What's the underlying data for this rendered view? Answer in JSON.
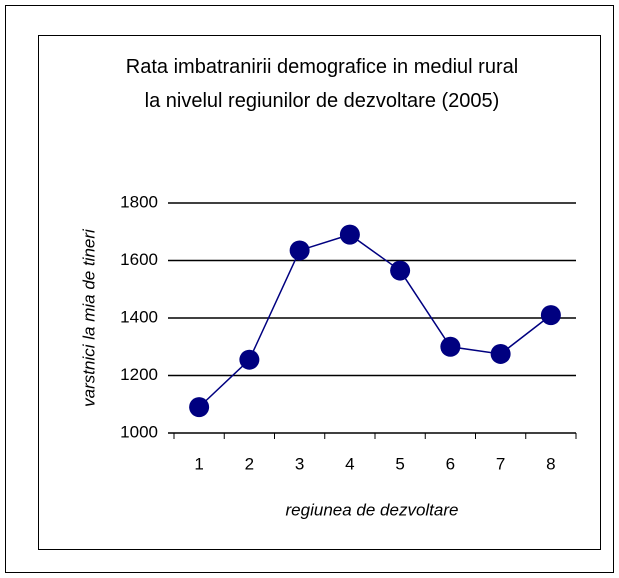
{
  "chart_data": {
    "type": "line",
    "title": "Rata imbatranirii demografice in mediul rural la nivelul regiunilor de dezvoltare (2005)",
    "x_label": "regiunea de dezvoltare",
    "y_label": "varstnici la mia de tineri",
    "categories": [
      "1",
      "2",
      "3",
      "4",
      "5",
      "6",
      "7",
      "8"
    ],
    "series": [
      {
        "color": "#000080",
        "values": [
          1090,
          1255,
          1635,
          1690,
          1565,
          1300,
          1275,
          1410
        ]
      }
    ],
    "ylim": [
      1000,
      1800
    ],
    "yticks": [
      1000,
      1200,
      1400,
      1600,
      1800
    ],
    "grid": true
  }
}
